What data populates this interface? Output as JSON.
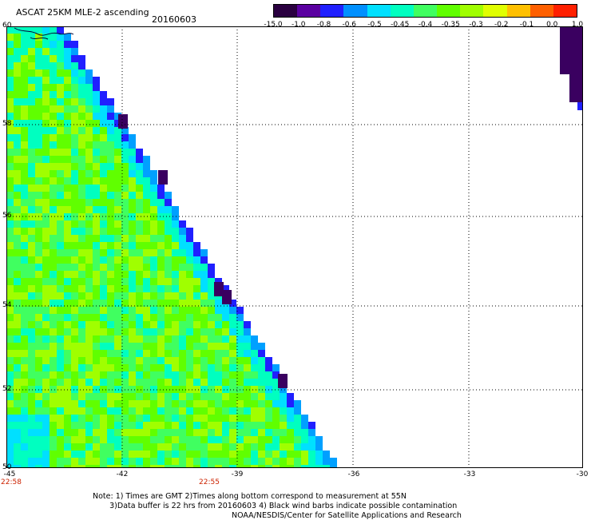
{
  "title": "ASCAT 25KM MLE-2 ascending",
  "date": "20160603",
  "colorbar": {
    "labels": [
      "-15.0",
      "-1.0",
      "-0.8",
      "-0.6",
      "-0.5",
      "-0.45",
      "-0.4",
      "-0.35",
      "-0.3",
      "-0.2",
      "-0.1",
      "0.0",
      "1.0"
    ],
    "colors": [
      "#2a0040",
      "#5a00a0",
      "#2020ff",
      "#0090ff",
      "#00e0ff",
      "#00ffc0",
      "#40ff60",
      "#60ff00",
      "#a0ff00",
      "#e0ff00",
      "#ffc000",
      "#ff6000",
      "#ff2000"
    ]
  },
  "map": {
    "lat_ticks": [
      "60",
      "58",
      "56",
      "54",
      "52",
      "50"
    ],
    "lon_ticks": [
      "-45",
      "-42",
      "-39",
      "-36",
      "-33",
      "-30"
    ],
    "time_labels": [
      "22:58",
      "22:55"
    ],
    "lat_range": [
      50,
      60
    ],
    "lon_range": [
      -45,
      -30
    ]
  },
  "notes": {
    "line1": "Note: 1) Times are GMT 2)Times along bottom correspond to measurement at 55N",
    "line2": "3)Data buffer is 22 hrs from 20160603 4) Black wind barbs indicate possible contamination",
    "credit": "NOAA/NESDIS/Center for Satellite Applications and Research"
  }
}
